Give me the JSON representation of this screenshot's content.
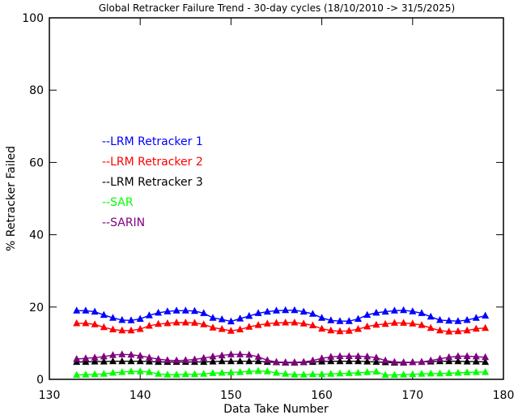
{
  "chart_data": {
    "type": "line",
    "title": "Global Retracker Failure Trend - 30-day cycles (18/10/2010 -> 31/5/2025)",
    "xlabel": "Data Take Number",
    "ylabel": "% Retracker Failed",
    "xlim": [
      130,
      180
    ],
    "ylim": [
      0,
      100
    ],
    "xticks": [
      130,
      140,
      150,
      160,
      170,
      180
    ],
    "yticks": [
      0,
      20,
      40,
      60,
      80,
      100
    ],
    "x_tick_labels": [
      "130",
      "140",
      "150",
      "160",
      "170",
      "180"
    ],
    "y_tick_labels": [
      "0",
      "20",
      "40",
      "60",
      "80",
      "100"
    ],
    "grid": false,
    "legend_position": "left",
    "marker": "triangle",
    "x": [
      133,
      134,
      135,
      136,
      137,
      138,
      139,
      140,
      141,
      142,
      143,
      144,
      145,
      146,
      147,
      148,
      149,
      150,
      151,
      152,
      153,
      154,
      155,
      156,
      157,
      158,
      159,
      160,
      161,
      162,
      163,
      164,
      165,
      166,
      167,
      168,
      169,
      170,
      171,
      172,
      173,
      174,
      175,
      176,
      177,
      178
    ],
    "series": [
      {
        "name": "--LRM Retracker 1",
        "color": "#0000ff",
        "values": [
          19.0,
          19.0,
          18.7,
          17.8,
          17.0,
          16.4,
          16.3,
          16.7,
          17.7,
          18.4,
          18.8,
          19.0,
          19.0,
          18.9,
          18.3,
          17.0,
          16.6,
          16.0,
          16.8,
          17.5,
          18.3,
          18.7,
          19.0,
          19.1,
          19.1,
          18.7,
          18.1,
          17.0,
          16.3,
          16.1,
          16.1,
          16.7,
          17.8,
          18.4,
          18.7,
          19.0,
          19.1,
          18.8,
          18.3,
          17.3,
          16.4,
          16.2,
          16.1,
          16.4,
          17.0,
          17.6
        ]
      },
      {
        "name": "--LRM Retracker 2",
        "color": "#ff0000",
        "values": [
          15.5,
          15.5,
          15.2,
          14.4,
          13.8,
          13.5,
          13.5,
          13.9,
          14.8,
          15.3,
          15.5,
          15.7,
          15.7,
          15.6,
          15.2,
          14.3,
          13.9,
          13.4,
          13.8,
          14.5,
          15.0,
          15.4,
          15.6,
          15.7,
          15.7,
          15.4,
          14.9,
          14.0,
          13.5,
          13.3,
          13.4,
          13.9,
          14.6,
          15.1,
          15.3,
          15.6,
          15.6,
          15.4,
          15.0,
          14.2,
          13.5,
          13.2,
          13.3,
          13.5,
          14.0,
          14.2
        ]
      },
      {
        "name": "--LRM Retracker 3",
        "color": "#000000",
        "values": [
          4.8,
          4.8,
          4.9,
          4.9,
          5.0,
          5.0,
          5.0,
          5.0,
          4.9,
          4.8,
          4.8,
          4.8,
          4.8,
          4.8,
          4.8,
          4.9,
          5.0,
          5.0,
          5.0,
          5.0,
          5.0,
          4.8,
          4.7,
          4.6,
          4.6,
          4.7,
          4.8,
          4.9,
          5.0,
          5.0,
          5.0,
          5.0,
          4.9,
          4.8,
          4.7,
          4.6,
          4.6,
          4.7,
          4.8,
          4.9,
          5.0,
          5.0,
          5.0,
          4.9,
          4.9,
          4.8
        ]
      },
      {
        "name": "--SAR",
        "color": "#00ff00",
        "values": [
          1.2,
          1.3,
          1.4,
          1.5,
          1.8,
          2.0,
          2.2,
          2.2,
          2.0,
          1.5,
          1.3,
          1.3,
          1.4,
          1.4,
          1.5,
          1.7,
          1.8,
          1.9,
          2.0,
          2.2,
          2.3,
          2.2,
          1.8,
          1.5,
          1.3,
          1.3,
          1.4,
          1.4,
          1.5,
          1.6,
          1.7,
          1.8,
          2.0,
          2.1,
          1.2,
          1.2,
          1.3,
          1.4,
          1.5,
          1.6,
          1.6,
          1.7,
          1.8,
          1.9,
          2.0,
          2.0
        ]
      },
      {
        "name": "--SARIN",
        "color": "#800080",
        "values": [
          5.6,
          5.8,
          6.0,
          6.3,
          6.7,
          6.9,
          6.8,
          6.5,
          6.0,
          5.6,
          5.3,
          5.2,
          5.3,
          5.5,
          5.9,
          6.3,
          6.6,
          6.9,
          6.9,
          6.8,
          6.2,
          5.3,
          4.8,
          4.7,
          4.7,
          4.8,
          5.2,
          5.8,
          6.2,
          6.4,
          6.4,
          6.4,
          6.3,
          6.0,
          5.2,
          4.8,
          4.7,
          4.7,
          4.8,
          5.2,
          5.7,
          6.1,
          6.4,
          6.4,
          6.3,
          6.1
        ]
      }
    ]
  }
}
